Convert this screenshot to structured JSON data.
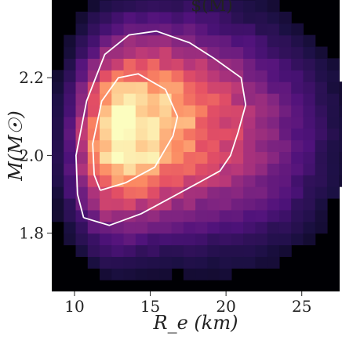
{
  "chart_data": {
    "type": "heatmap",
    "title": "",
    "title_fragment": "$(M)",
    "xlabel": "R_e (km)",
    "ylabel": "M(M☉)",
    "xlim": [
      8.5,
      27.5
    ],
    "ylim": [
      1.65,
      2.4
    ],
    "x_ticks": [
      10,
      15,
      20,
      25
    ],
    "y_ticks": [
      1.8,
      2.0,
      2.2
    ],
    "x_tick_labels": [
      "10",
      "15",
      "20",
      "25"
    ],
    "y_tick_labels": [
      "1.8",
      "2.0",
      "2.2"
    ],
    "colormap": "magma",
    "background_color": "#000004",
    "grid": false,
    "legend": "none",
    "density": {
      "center_x": 13.0,
      "center_y": 2.06,
      "sigma_x": 2.3,
      "sigma_y": 0.14,
      "tilt": 0.04,
      "tail_x_extent": 8.0,
      "x_bin_width": 0.79,
      "y_bin_width": 0.03
    },
    "contours": [
      {
        "level": "outer",
        "color": "#ffffff",
        "points": [
          [
            10.6,
            1.84
          ],
          [
            12.3,
            1.82
          ],
          [
            14.4,
            1.85
          ],
          [
            16.3,
            1.89
          ],
          [
            18.2,
            1.93
          ],
          [
            19.6,
            1.96
          ],
          [
            20.3,
            2.0
          ],
          [
            20.8,
            2.06
          ],
          [
            21.3,
            2.13
          ],
          [
            21.0,
            2.2
          ],
          [
            19.2,
            2.25
          ],
          [
            17.6,
            2.29
          ],
          [
            15.4,
            2.32
          ],
          [
            13.6,
            2.31
          ],
          [
            12.0,
            2.26
          ],
          [
            10.8,
            2.14
          ],
          [
            10.1,
            2.0
          ],
          [
            10.2,
            1.9
          ],
          [
            10.6,
            1.84
          ]
        ]
      },
      {
        "level": "inner",
        "color": "#ffffff",
        "points": [
          [
            11.7,
            1.91
          ],
          [
            13.4,
            1.93
          ],
          [
            15.3,
            1.97
          ],
          [
            16.5,
            2.05
          ],
          [
            16.8,
            2.1
          ],
          [
            16.0,
            2.17
          ],
          [
            14.2,
            2.21
          ],
          [
            12.9,
            2.2
          ],
          [
            11.8,
            2.14
          ],
          [
            11.2,
            2.03
          ],
          [
            11.3,
            1.95
          ],
          [
            11.7,
            1.91
          ]
        ]
      }
    ]
  }
}
